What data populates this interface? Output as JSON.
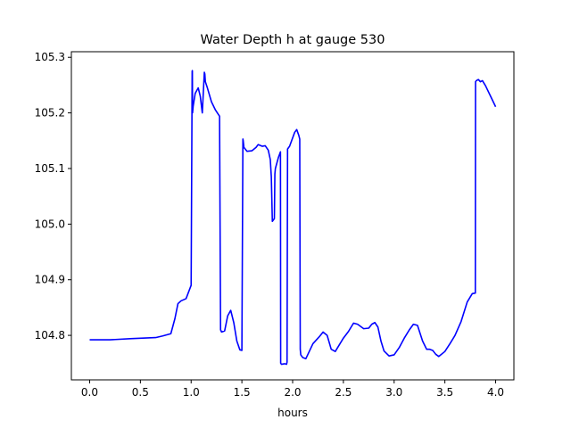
{
  "chart_data": {
    "type": "line",
    "title": "Water Depth h at gauge 530",
    "xlabel": "hours",
    "ylabel": "",
    "xlim": [
      -0.18,
      4.18
    ],
    "ylim": [
      104.72,
      105.31
    ],
    "grid": false,
    "x_ticks": [
      {
        "value": 0.0,
        "label": "0.0"
      },
      {
        "value": 0.5,
        "label": "0.5"
      },
      {
        "value": 1.0,
        "label": "1.0"
      },
      {
        "value": 1.5,
        "label": "1.5"
      },
      {
        "value": 2.0,
        "label": "2.0"
      },
      {
        "value": 2.5,
        "label": "2.5"
      },
      {
        "value": 3.0,
        "label": "3.0"
      },
      {
        "value": 3.5,
        "label": "3.5"
      },
      {
        "value": 4.0,
        "label": "4.0"
      }
    ],
    "y_ticks": [
      {
        "value": 104.8,
        "label": "104.8"
      },
      {
        "value": 104.9,
        "label": "104.9"
      },
      {
        "value": 105.0,
        "label": "105.0"
      },
      {
        "value": 105.1,
        "label": "105.1"
      },
      {
        "value": 105.2,
        "label": "105.2"
      },
      {
        "value": 105.3,
        "label": "105.3"
      }
    ],
    "series": [
      {
        "color": "#0000ff",
        "x": [
          0.0,
          0.2,
          0.4,
          0.65,
          0.72,
          0.8,
          0.84,
          0.87,
          0.9,
          0.95,
          1.0,
          1.01,
          1.012,
          1.014,
          1.02,
          1.04,
          1.07,
          1.09,
          1.11,
          1.13,
          1.135,
          1.14,
          1.16,
          1.2,
          1.24,
          1.28,
          1.29,
          1.3,
          1.33,
          1.36,
          1.39,
          1.42,
          1.45,
          1.48,
          1.5,
          1.51,
          1.513,
          1.52,
          1.55,
          1.6,
          1.64,
          1.66,
          1.7,
          1.73,
          1.76,
          1.78,
          1.785,
          1.79,
          1.8,
          1.82,
          1.825,
          1.83,
          1.86,
          1.88,
          1.882,
          1.89,
          1.92,
          1.94,
          1.945,
          1.95,
          1.97,
          2.02,
          2.04,
          2.06,
          2.07,
          2.075,
          2.08,
          2.1,
          2.13,
          2.2,
          2.26,
          2.3,
          2.34,
          2.38,
          2.42,
          2.5,
          2.55,
          2.6,
          2.64,
          2.7,
          2.75,
          2.78,
          2.81,
          2.84,
          2.87,
          2.9,
          2.95,
          3.0,
          3.05,
          3.1,
          3.15,
          3.19,
          3.23,
          3.28,
          3.32,
          3.35,
          3.38,
          3.41,
          3.44,
          3.5,
          3.55,
          3.6,
          3.66,
          3.72,
          3.77,
          3.8,
          3.802,
          3.81,
          3.83,
          3.85,
          3.87,
          3.9,
          3.95,
          4.0
        ],
        "y": [
          104.792,
          104.792,
          104.794,
          104.796,
          104.799,
          104.803,
          104.83,
          104.857,
          104.862,
          104.866,
          104.89,
          105.275,
          105.276,
          105.2,
          105.212,
          105.235,
          105.245,
          105.23,
          105.2,
          105.273,
          105.27,
          105.256,
          105.245,
          105.22,
          105.205,
          105.194,
          104.81,
          104.806,
          104.808,
          104.835,
          104.845,
          104.823,
          104.79,
          104.774,
          104.773,
          105.153,
          105.15,
          105.138,
          105.131,
          105.132,
          105.138,
          105.143,
          105.14,
          105.141,
          105.133,
          105.116,
          105.1,
          105.085,
          105.005,
          105.01,
          105.09,
          105.1,
          105.12,
          105.13,
          104.75,
          104.748,
          104.749,
          104.748,
          104.752,
          105.135,
          105.14,
          105.165,
          105.17,
          105.16,
          105.153,
          104.775,
          104.765,
          104.76,
          104.758,
          104.785,
          104.797,
          104.806,
          104.8,
          104.775,
          104.771,
          104.795,
          104.807,
          104.822,
          104.82,
          104.812,
          104.813,
          104.82,
          104.823,
          104.815,
          104.79,
          104.772,
          104.763,
          104.765,
          104.778,
          104.795,
          104.81,
          104.82,
          104.818,
          104.79,
          104.775,
          104.775,
          104.773,
          104.766,
          104.762,
          104.771,
          104.785,
          104.8,
          104.825,
          104.86,
          104.875,
          104.876,
          105.256,
          105.258,
          105.26,
          105.256,
          105.258,
          105.249,
          105.23,
          105.211
        ]
      }
    ]
  }
}
